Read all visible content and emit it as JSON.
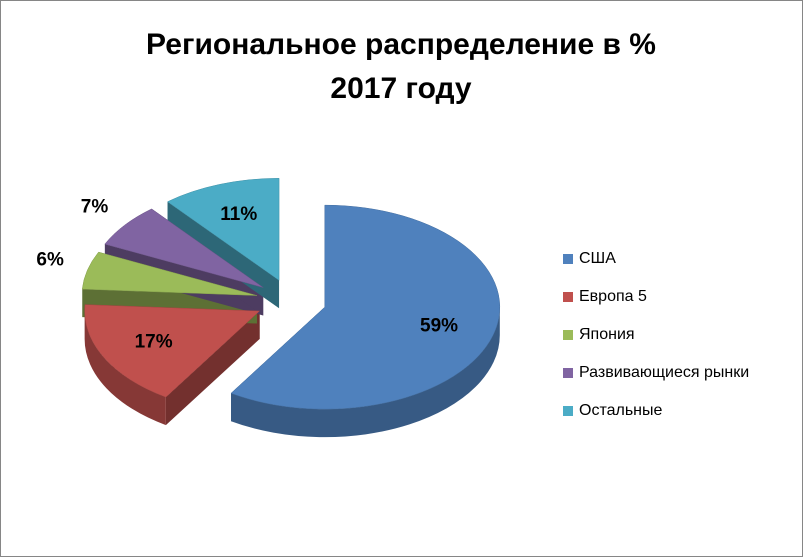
{
  "chart_data": {
    "type": "pie",
    "title": "Региональное распределение в % 2017 году",
    "categories": [
      "США",
      "Европа 5",
      "Япония",
      "Развивающиеся рынки",
      "Остальные"
    ],
    "values": [
      59,
      17,
      6,
      7,
      11
    ],
    "value_labels": [
      "59%",
      "17%",
      "6%",
      "7%",
      "11%"
    ],
    "colors": [
      "#4f81bd",
      "#c0504d",
      "#9bbb59",
      "#8064a2",
      "#4bacc6"
    ],
    "legend": "right"
  }
}
